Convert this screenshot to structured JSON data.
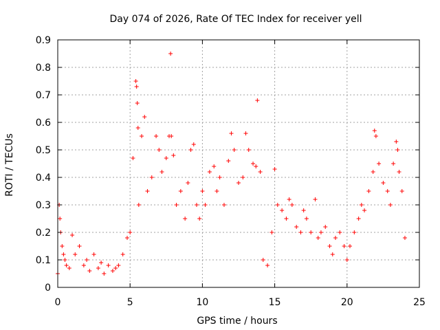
{
  "chart_data": {
    "type": "scatter",
    "title": "Day 074 of 2026, Rate Of TEC Index for receiver yell",
    "xlabel": "GPS time / hours",
    "ylabel": "ROTI / TECUs",
    "xlim": [
      0,
      25
    ],
    "ylim": [
      0,
      0.9
    ],
    "xticks": [
      0,
      5,
      10,
      15,
      20,
      25
    ],
    "yticks": [
      0,
      0.1,
      0.2,
      0.3,
      0.4,
      0.5,
      0.6,
      0.7,
      0.8,
      0.9
    ],
    "grid": true,
    "marker": "+",
    "color": "#ff0000",
    "series": [
      {
        "x": [
          0.0,
          0.1,
          0.15,
          0.2,
          0.3,
          0.4,
          0.5,
          0.6,
          0.8,
          1.0,
          1.2,
          1.5,
          1.8,
          2.0,
          2.2,
          2.5,
          2.8,
          3.0,
          3.2,
          3.5,
          3.8,
          4.0,
          4.2,
          4.5,
          4.8,
          5.0,
          5.2,
          5.4,
          5.45,
          5.5,
          5.55,
          5.6,
          5.8,
          6.0,
          6.2,
          6.5,
          6.8,
          7.0,
          7.2,
          7.5,
          7.7,
          7.8,
          7.85,
          8.0,
          8.2,
          8.5,
          8.8,
          9.0,
          9.2,
          9.4,
          9.6,
          9.8,
          10.0,
          10.2,
          10.5,
          10.8,
          11.0,
          11.2,
          11.5,
          11.8,
          12.0,
          12.2,
          12.5,
          12.8,
          13.0,
          13.2,
          13.5,
          13.7,
          13.8,
          14.0,
          14.2,
          14.5,
          14.8,
          15.0,
          15.2,
          15.5,
          15.8,
          16.0,
          16.2,
          16.5,
          16.8,
          17.0,
          17.2,
          17.5,
          17.8,
          18.0,
          18.2,
          18.5,
          18.8,
          19.0,
          19.2,
          19.5,
          19.8,
          20.0,
          20.2,
          20.5,
          20.8,
          21.0,
          21.2,
          21.5,
          21.8,
          21.9,
          22.0,
          22.2,
          22.5,
          22.8,
          23.0,
          23.2,
          23.4,
          23.5,
          23.6,
          23.8,
          24.0
        ],
        "y": [
          0.05,
          0.3,
          0.25,
          0.2,
          0.15,
          0.12,
          0.1,
          0.08,
          0.07,
          0.19,
          0.12,
          0.15,
          0.08,
          0.1,
          0.06,
          0.12,
          0.07,
          0.09,
          0.05,
          0.08,
          0.06,
          0.07,
          0.08,
          0.12,
          0.18,
          0.2,
          0.47,
          0.75,
          0.73,
          0.67,
          0.58,
          0.3,
          0.55,
          0.62,
          0.35,
          0.4,
          0.55,
          0.5,
          0.42,
          0.47,
          0.55,
          0.85,
          0.55,
          0.48,
          0.3,
          0.35,
          0.25,
          0.38,
          0.5,
          0.52,
          0.3,
          0.25,
          0.35,
          0.3,
          0.42,
          0.44,
          0.35,
          0.4,
          0.3,
          0.46,
          0.56,
          0.5,
          0.38,
          0.4,
          0.56,
          0.5,
          0.45,
          0.44,
          0.68,
          0.42,
          0.1,
          0.08,
          0.2,
          0.43,
          0.3,
          0.28,
          0.25,
          0.32,
          0.3,
          0.22,
          0.2,
          0.28,
          0.25,
          0.2,
          0.32,
          0.18,
          0.2,
          0.22,
          0.15,
          0.12,
          0.18,
          0.2,
          0.15,
          0.1,
          0.15,
          0.2,
          0.25,
          0.3,
          0.28,
          0.35,
          0.42,
          0.57,
          0.55,
          0.45,
          0.38,
          0.35,
          0.3,
          0.45,
          0.53,
          0.5,
          0.42,
          0.35,
          0.18
        ]
      }
    ]
  }
}
